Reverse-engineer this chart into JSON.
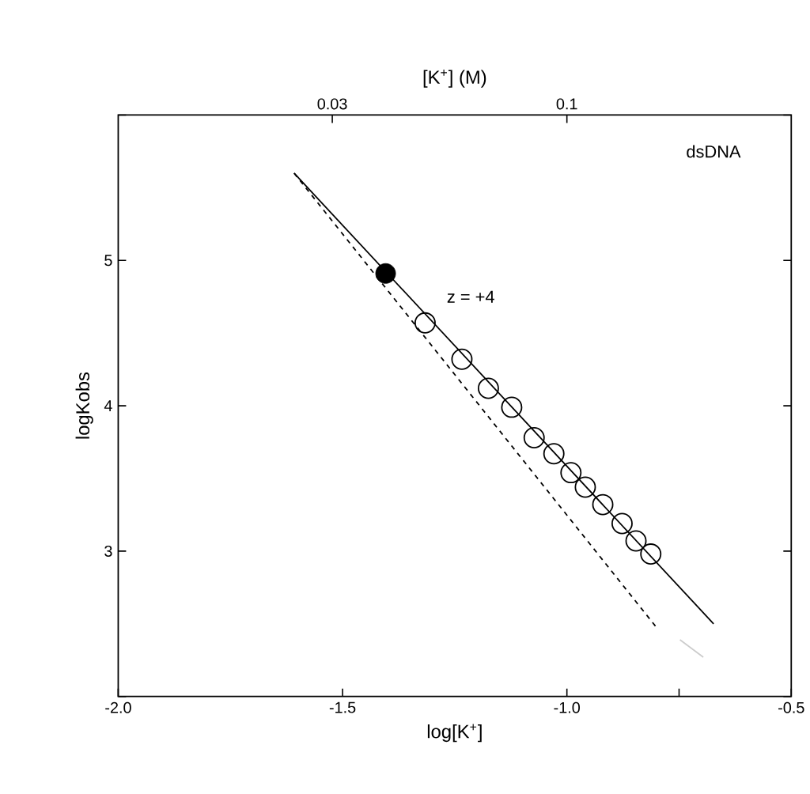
{
  "chart_data": {
    "type": "scatter",
    "xlabel": "log[K$^{+}$]",
    "ylabel": "logKobs",
    "x2label": "[K$^{+}$] (M)",
    "xlim": [
      -2.0,
      -0.5
    ],
    "ylim": [
      2,
      6
    ],
    "xticks": [
      {
        "value": -2.0,
        "label": "-2.0"
      },
      {
        "value": -1.5,
        "label": "-1.5"
      },
      {
        "value": -1.0,
        "label": "-1.0"
      },
      {
        "value": -0.75,
        "label": null
      },
      {
        "value": -0.5,
        "label": "-0.5"
      }
    ],
    "yticks": [
      {
        "value": 2,
        "label": null
      },
      3,
      4,
      5,
      {
        "value": 6,
        "label": null
      }
    ],
    "x2lim": [
      0.01,
      0.3162
    ],
    "x2ticks": [
      0.03,
      0.1
    ],
    "log": "x2",
    "grid": false,
    "annotations": [
      "dsDNA",
      "z = +4"
    ],
    "series": [
      {
        "type": "line",
        "line_style": "solid",
        "color": "#000000",
        "x": [
          -1.608,
          -0.673
        ],
        "values": [
          5.6,
          2.5
        ]
      },
      {
        "type": "line",
        "line_style": "dashed",
        "color": "#000000",
        "x": [
          -1.608,
          -0.799
        ],
        "values": [
          5.6,
          2.47
        ]
      },
      {
        "type": "line",
        "line_style": "solid",
        "color": "#cccccc",
        "x": [
          -0.748,
          -0.696
        ],
        "values": [
          2.39,
          2.27
        ]
      },
      {
        "marker": "circle",
        "color": "#000000",
        "x": [
          -1.404
        ],
        "values": [
          4.91
        ]
      },
      {
        "marker": "circle",
        "color": "#000000",
        "x": [
          -1.316,
          -1.234,
          -1.175,
          -1.123,
          -1.073,
          -1.029,
          -0.991,
          -0.959,
          -0.92,
          -0.877,
          -0.846,
          -0.813
        ],
        "values": [
          4.57,
          4.32,
          4.12,
          3.99,
          3.78,
          3.67,
          3.54,
          3.44,
          3.32,
          3.19,
          3.07,
          2.98
        ]
      }
    ]
  }
}
